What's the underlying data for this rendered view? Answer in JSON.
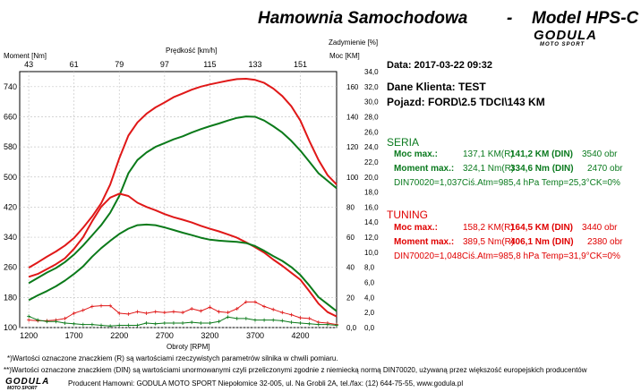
{
  "header": {
    "title": "Hamownia Samochodowa",
    "dash": "-",
    "model": "Model HPS-C",
    "logo_text": "GODULA",
    "logo_sub": "MOTO SPORT"
  },
  "chart_data": {
    "type": "line",
    "x_label": "Obroty [RPM]",
    "x_ticks": [
      1200,
      1700,
      2200,
      2700,
      3200,
      3700,
      4200
    ],
    "x_range": [
      1100,
      4600
    ],
    "top_axis_label": "Prędkość [km/h]",
    "top_ticks": [
      "43",
      "61",
      "79",
      "97",
      "115",
      "133",
      "151"
    ],
    "left_axis_label": "Moment [Nm]",
    "left_ticks": [
      100,
      180,
      260,
      340,
      420,
      500,
      580,
      660,
      740
    ],
    "left_range": [
      100,
      780
    ],
    "right_axis_label_top": "Zadymienie [%]",
    "right_axis_label": "Moc [KM]",
    "right_ticks_power": [
      "0,0",
      "20",
      "40",
      "60",
      "80",
      "100",
      "120",
      "140",
      "160"
    ],
    "right_ticks_smoke": [
      "0,0",
      "2,0",
      "4,0",
      "6,0",
      "8,0",
      "10,0",
      "12,0",
      "14,0",
      "16,0",
      "18,0",
      "20,0",
      "22,0",
      "24,0",
      "26,0",
      "28,0",
      "30,0",
      "32,0",
      "34,0"
    ],
    "right_range": [
      0,
      170
    ],
    "series": [
      {
        "name": "",
        "color": "#e01818",
        "axis": "left",
        "x": [
          1200,
          1300,
          1400,
          1500,
          1600,
          1700,
          1800,
          1900,
          2000,
          2100,
          2200,
          2300,
          2400,
          2500,
          2600,
          2700,
          2800,
          2900,
          3000,
          3100,
          3200,
          3300,
          3400,
          3500,
          3600,
          3700,
          3800,
          3900,
          4000,
          4100,
          4200,
          4300,
          4400,
          4500,
          4600
        ],
        "y": [
          259,
          273,
          288,
          302,
          318,
          338,
          365,
          395,
          430,
          480,
          550,
          610,
          645,
          668,
          685,
          698,
          712,
          722,
          732,
          740,
          746,
          751,
          756,
          760,
          761,
          758,
          750,
          735,
          715,
          688,
          650,
          595,
          545,
          505,
          480
        ]
      },
      {
        "name": "",
        "color": "#0b7a1a",
        "axis": "left",
        "x": [
          1200,
          1300,
          1400,
          1500,
          1600,
          1700,
          1800,
          1900,
          2000,
          2100,
          2200,
          2300,
          2400,
          2500,
          2600,
          2700,
          2800,
          2900,
          3000,
          3100,
          3200,
          3300,
          3400,
          3500,
          3600,
          3700,
          3800,
          3900,
          4000,
          4100,
          4200,
          4300,
          4400,
          4500,
          4600
        ],
        "y": [
          218,
          232,
          246,
          258,
          274,
          294,
          318,
          345,
          372,
          405,
          450,
          510,
          545,
          565,
          580,
          590,
          600,
          608,
          618,
          627,
          635,
          642,
          650,
          657,
          661,
          660,
          650,
          635,
          618,
          596,
          570,
          540,
          510,
          490,
          470
        ]
      },
      {
        "name": "",
        "color": "#e01818",
        "axis": "right",
        "x": [
          1200,
          1300,
          1400,
          1500,
          1600,
          1700,
          1800,
          1900,
          2000,
          2100,
          2200,
          2300,
          2400,
          2500,
          2600,
          2700,
          2800,
          2900,
          3000,
          3100,
          3200,
          3300,
          3400,
          3500,
          3600,
          3700,
          3800,
          3900,
          4000,
          4100,
          4200,
          4300,
          4400,
          4500,
          4600
        ],
        "y": [
          33.7,
          35.6,
          38.8,
          42.1,
          46.0,
          52.3,
          60.0,
          70.6,
          80.2,
          86.3,
          88.9,
          87.4,
          82.9,
          80.1,
          77.9,
          75.4,
          73.3,
          71.6,
          69.8,
          67.6,
          65.6,
          63.9,
          61.9,
          59.7,
          56.6,
          53.3,
          49.8,
          45.2,
          41.0,
          36.4,
          31.8,
          24.0,
          15.9,
          10.3,
          7.4
        ]
      },
      {
        "name": "",
        "color": "#0b7a1a",
        "axis": "right",
        "x": [
          1200,
          1300,
          1400,
          1500,
          1600,
          1700,
          1800,
          1900,
          2000,
          2100,
          2200,
          2300,
          2400,
          2500,
          2600,
          2700,
          2800,
          2900,
          3000,
          3100,
          3200,
          3300,
          3400,
          3500,
          3600,
          3700,
          3800,
          3900,
          4000,
          4100,
          4200,
          4300,
          4400,
          4500,
          4600
        ],
        "y": [
          18.2,
          21.4,
          24.2,
          27.4,
          31.2,
          35.6,
          40.6,
          47.1,
          52.7,
          57.6,
          62.2,
          65.7,
          68.0,
          68.4,
          68.0,
          66.5,
          64.8,
          63.0,
          61.4,
          59.7,
          58.4,
          57.7,
          57.3,
          56.9,
          56.1,
          54.1,
          51.0,
          47.5,
          44.3,
          40.2,
          34.9,
          27.8,
          20.2,
          15.6,
          10.9
        ]
      },
      {
        "name": "",
        "color": "#e01818",
        "axis": "right",
        "marker": "cross",
        "x": [
          1200,
          1300,
          1400,
          1500,
          1600,
          1700,
          1800,
          1900,
          2000,
          2100,
          2200,
          2300,
          2400,
          2500,
          2600,
          2700,
          2800,
          2900,
          3000,
          3100,
          3200,
          3300,
          3400,
          3500,
          3600,
          3700,
          3800,
          3900,
          4000,
          4100,
          4200,
          4300,
          4400,
          4500,
          4600
        ],
        "y": [
          1.0,
          0.9,
          0.9,
          1.0,
          1.2,
          1.9,
          2.3,
          2.8,
          2.9,
          2.9,
          1.9,
          1.8,
          2.1,
          1.9,
          2.1,
          2.0,
          2.1,
          2.0,
          2.5,
          2.2,
          2.7,
          2.1,
          2.0,
          2.5,
          3.4,
          3.4,
          2.8,
          2.4,
          2.0,
          1.7,
          1.3,
          1.2,
          0.7,
          0.6,
          0.4
        ]
      },
      {
        "name": "",
        "color": "#0b7a1a",
        "axis": "right",
        "marker": "cross",
        "x": [
          1200,
          1300,
          1400,
          1500,
          1600,
          1700,
          1800,
          1900,
          2000,
          2100,
          2200,
          2300,
          2400,
          2500,
          2600,
          2700,
          2800,
          2900,
          3000,
          3100,
          3200,
          3300,
          3400,
          3500,
          3600,
          3700,
          3800,
          3900,
          4000,
          4100,
          4200,
          4300,
          4400,
          4500,
          4600
        ],
        "y": [
          1.5,
          1.0,
          0.8,
          0.8,
          0.6,
          0.5,
          0.4,
          0.4,
          0.3,
          0.2,
          0.3,
          0.3,
          0.3,
          0.6,
          0.5,
          0.6,
          0.6,
          0.6,
          0.7,
          0.6,
          0.6,
          0.8,
          1.4,
          1.2,
          1.2,
          1.0,
          1.0,
          1.0,
          0.9,
          0.7,
          0.6,
          0.5,
          0.4,
          0.4,
          0.3
        ]
      }
    ]
  },
  "info": {
    "date": "Data: 2017-03-22  09:32",
    "client": "Dane Klienta: TEST",
    "vehicle": "Pojazd: FORD\\2.5 TDCI\\143 KM",
    "seria": {
      "title": "SERIA",
      "power_label": "Moc max.:",
      "power_val": "137,1 KM(R)",
      "power_din": "141,2 KM (DIN)",
      "power_rpm": "3540 obr",
      "torque_label": "Moment max.:",
      "torque_val": "324,1 Nm(R)",
      "torque_din": "334,6 Nm (DIN)",
      "torque_rpm": "2470 obr",
      "cond": "DIN70020=1,037Ciś.Atm=985,4 hPa  Temp=25,3°CK=0%"
    },
    "tuning": {
      "title": "TUNING",
      "power_label": "Moc max.:",
      "power_val": "158,2 KM(R)",
      "power_din": "164,5 KM (DIN)",
      "power_rpm": "3440 obr",
      "torque_label": "Moment max.:",
      "torque_val": "389,5 Nm(R)",
      "torque_din": "406,1 Nm (DIN)",
      "torque_rpm": "2380 obr",
      "cond": "DIN70020=1,048Ciś.Atm=985,8 hPa  Temp=31,9°CK=0%"
    }
  },
  "footer": {
    "note1": "*)Wartości oznaczone znaczkiem (R) są wartościami rzeczywistych parametrów silnika w chwili pomiaru.",
    "note2": "**)Wartości oznaczone znaczkiem (DIN) są wartościami unormowanymi czyli przeliczonymi zgodnie z niemiecką normą DIN70020, używaną przez większość europejskich producentów",
    "producer": "Producent Hamowni: GODULA MOTO SPORT Niepołomice 32-005, ul. Na Grobli 2A, tel./fax: (12) 644-75-55, www.godula.pl",
    "logo_text": "GODULA",
    "logo_sub": "MOTO SPORT"
  }
}
